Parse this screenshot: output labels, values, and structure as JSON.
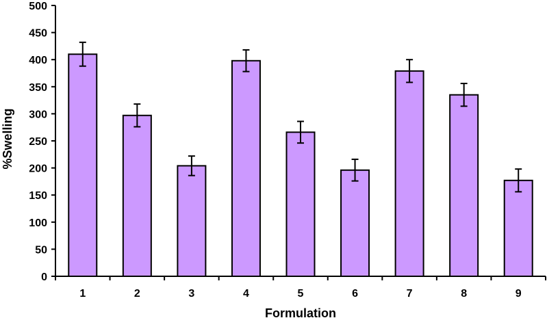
{
  "chart_data": {
    "type": "bar",
    "title": "",
    "xlabel": "Formulation",
    "ylabel": "%Swelling",
    "categories": [
      "1",
      "2",
      "3",
      "4",
      "5",
      "6",
      "7",
      "8",
      "9"
    ],
    "values": [
      410,
      297,
      204,
      398,
      266,
      196,
      379,
      335,
      177
    ],
    "error": [
      22,
      21,
      18,
      20,
      20,
      20,
      21,
      21,
      21
    ],
    "ylim": [
      0,
      500
    ],
    "yticks": [
      "0",
      "50",
      "100",
      "150",
      "200",
      "250",
      "300",
      "350",
      "400",
      "450",
      "500"
    ],
    "grid": false,
    "legend": "none",
    "bar_color": "#cc99ff",
    "bar_edge_color": "#000000"
  }
}
